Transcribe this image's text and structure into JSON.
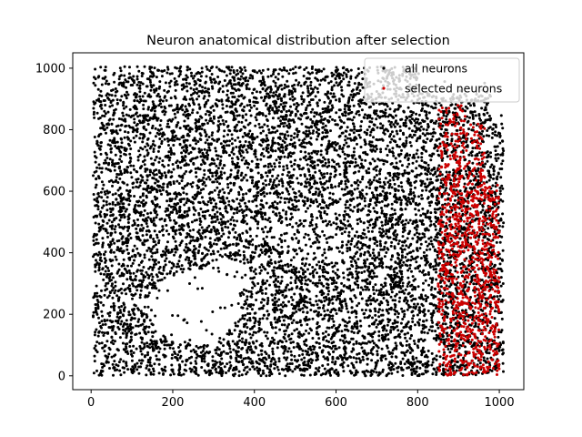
{
  "chart_data": {
    "type": "scatter",
    "title": "Neuron anatomical distribution after selection",
    "xlabel": "",
    "ylabel": "",
    "xlim": [
      -45,
      1060
    ],
    "ylim": [
      -45,
      1050
    ],
    "x_ticks": [
      0,
      200,
      400,
      600,
      800,
      1000
    ],
    "y_ticks": [
      0,
      200,
      400,
      600,
      800,
      1000
    ],
    "grid": false,
    "legend_position": "top-right",
    "series": [
      {
        "name": "all neurons",
        "color": "#000000",
        "x_range": [
          5,
          1010
        ],
        "y_range": [
          0,
          1005
        ],
        "approx_points": 9000
      },
      {
        "name": "selected neurons",
        "color": "#cc0000",
        "x_range": [
          850,
          1000
        ],
        "y_range": [
          0,
          880
        ],
        "approx_points": 1100
      }
    ],
    "x_tick_labels": [
      "0",
      "200",
      "400",
      "600",
      "800",
      "1000"
    ],
    "y_tick_labels": [
      "0",
      "200",
      "400",
      "600",
      "800",
      "1000"
    ]
  }
}
